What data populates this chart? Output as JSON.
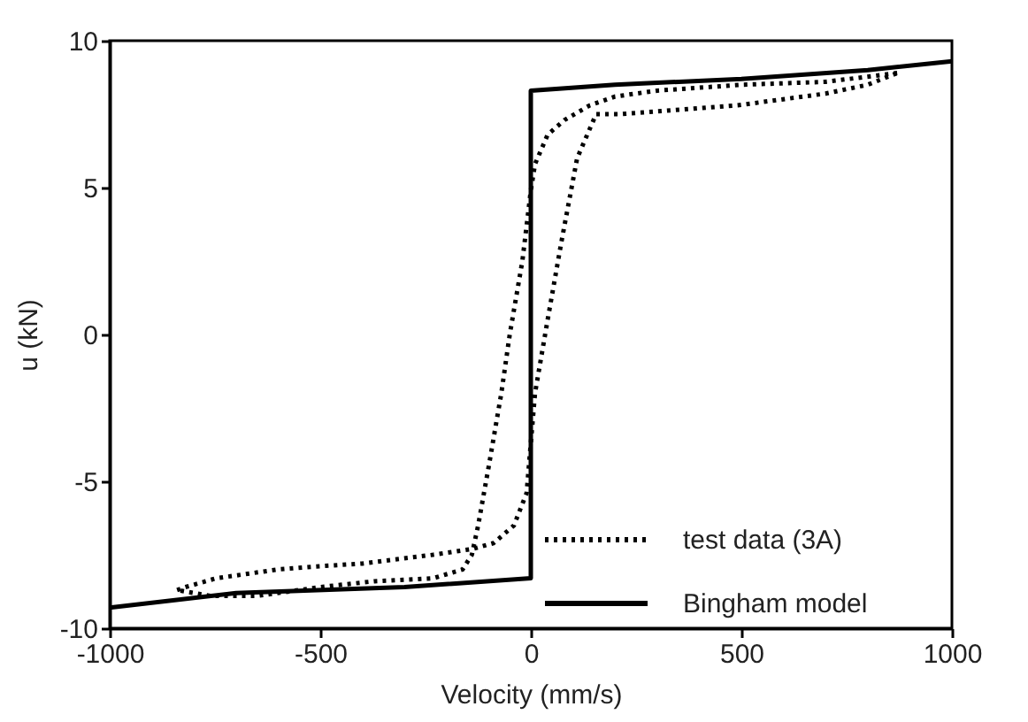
{
  "chart_data": {
    "type": "line",
    "xlabel": "Velocity (mm/s)",
    "ylabel": "u (kN)",
    "xlim": [
      -1000,
      1000
    ],
    "xticks": [
      -1000,
      -500,
      0,
      500,
      1000
    ],
    "ylim": [
      -10,
      10
    ],
    "yticks": [
      -10,
      -5,
      0,
      5,
      10
    ],
    "grid": false,
    "legend": "bottom right",
    "marker": "none",
    "series": [
      {
        "name": "test data (3A)",
        "color": "#000000",
        "line_style": "dotted",
        "x": [
          870,
          700,
          500,
          300,
          200,
          140,
          80,
          40,
          10,
          0,
          -20,
          -50,
          -70,
          -100,
          -125,
          -140,
          -162,
          -232,
          -371,
          -500,
          -649,
          -760,
          -840
        ],
        "values": [
          8.9,
          8.6,
          8.5,
          8.3,
          8.1,
          7.8,
          7.3,
          6.8,
          5.8,
          4.9,
          2.5,
          0,
          -2,
          -4.5,
          -6.5,
          -7.5,
          -8.0,
          -8.3,
          -8.4,
          -8.6,
          -8.9,
          -8.9,
          -8.7
        ]
      },
      {
        "color": "#000000",
        "line_style": "dotted",
        "x": [
          -840,
          -820,
          -747,
          -600,
          -511,
          -400,
          -232,
          -138,
          -88,
          -40,
          -10,
          10,
          40,
          72,
          110,
          155,
          213,
          491,
          700,
          800,
          870
        ],
        "values": [
          -8.7,
          -8.6,
          -8.3,
          -8.0,
          -7.9,
          -7.8,
          -7.5,
          -7.3,
          -7.1,
          -6.5,
          -5.4,
          -2,
          0.5,
          3.1,
          6,
          7.5,
          7.5,
          7.8,
          8.2,
          8.5,
          8.9
        ]
      },
      {
        "name": "Bingham model",
        "color": "#000000",
        "line_style": "solid",
        "x": [
          -1000,
          -700,
          -300,
          0,
          0,
          200,
          500,
          800,
          1000
        ],
        "values": [
          -9.3,
          -8.8,
          -8.6,
          -8.3,
          8.3,
          8.5,
          8.7,
          9.0,
          9.3
        ]
      }
    ]
  }
}
